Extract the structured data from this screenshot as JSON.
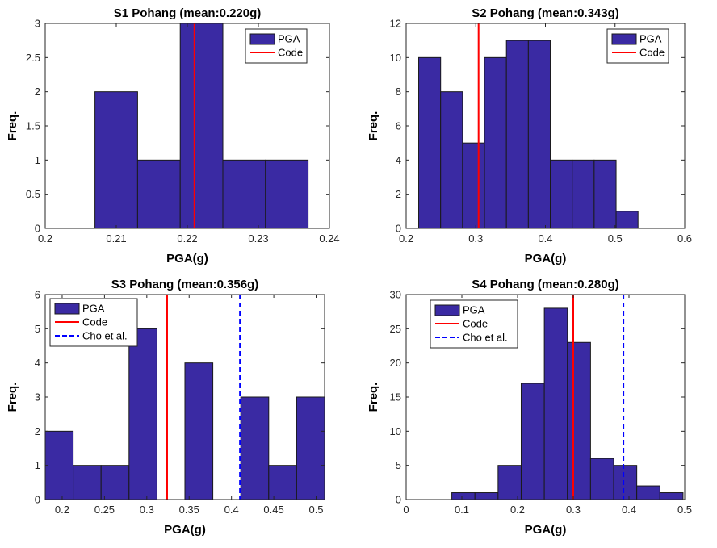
{
  "colors": {
    "bar": "#3a2aa3",
    "code": "#ff0000",
    "cho": "#0000ff"
  },
  "chart_data": [
    {
      "type": "bar",
      "title": "S1 Pohang (mean:0.220g)",
      "xlabel": "PGA(g)",
      "ylabel": "Freq.",
      "xlim": [
        0.2,
        0.24
      ],
      "ylim": [
        0,
        3
      ],
      "xticks": [
        0.2,
        0.21,
        0.22,
        0.23,
        0.24
      ],
      "xtick_labels": [
        "0.2",
        "0.21",
        "0.22",
        "0.23",
        "0.24"
      ],
      "yticks": [
        0,
        0.5,
        1,
        1.5,
        2,
        2.5,
        3
      ],
      "ytick_labels": [
        "0",
        "0.5",
        "1",
        "1.5",
        "2",
        "2.5",
        "3"
      ],
      "bin_edges": [
        0.207,
        0.213,
        0.219,
        0.225,
        0.231,
        0.237
      ],
      "values": [
        2,
        1,
        3,
        1,
        1
      ],
      "lines": [
        {
          "name": "Code",
          "x": 0.221,
          "style": "solid",
          "color": "#ff0000"
        }
      ],
      "legend": {
        "position": "top-right",
        "entries": [
          "PGA",
          "Code"
        ]
      }
    },
    {
      "type": "bar",
      "title": "S2 Pohang (mean:0.343g)",
      "xlabel": "PGA(g)",
      "ylabel": "Freq.",
      "xlim": [
        0.2,
        0.6
      ],
      "ylim": [
        0,
        12
      ],
      "xticks": [
        0.2,
        0.3,
        0.4,
        0.5,
        0.6
      ],
      "xtick_labels": [
        "0.2",
        "0.3",
        "0.4",
        "0.5",
        "0.6"
      ],
      "yticks": [
        0,
        2,
        4,
        6,
        8,
        10,
        12
      ],
      "ytick_labels": [
        "0",
        "2",
        "4",
        "6",
        "8",
        "10",
        "12"
      ],
      "bin_edges": [
        0.218,
        0.2495,
        0.281,
        0.3125,
        0.344,
        0.3755,
        0.407,
        0.4385,
        0.47,
        0.5015,
        0.533
      ],
      "values": [
        10,
        8,
        5,
        10,
        11,
        11,
        4,
        4,
        4,
        1
      ],
      "lines": [
        {
          "name": "Code",
          "x": 0.304,
          "style": "solid",
          "color": "#ff0000"
        }
      ],
      "legend": {
        "position": "top-right",
        "entries": [
          "PGA",
          "Code"
        ]
      }
    },
    {
      "type": "bar",
      "title": "S3 Pohang (mean:0.356g)",
      "xlabel": "PGA(g)",
      "ylabel": "Freq.",
      "xlim": [
        0.18,
        0.51
      ],
      "ylim": [
        0,
        6
      ],
      "xticks": [
        0.2,
        0.25,
        0.3,
        0.35,
        0.4,
        0.45,
        0.5
      ],
      "xtick_labels": [
        "0.2",
        "0.25",
        "0.3",
        "0.35",
        "0.4",
        "0.45",
        "0.5"
      ],
      "yticks": [
        0,
        1,
        2,
        3,
        4,
        5,
        6
      ],
      "ytick_labels": [
        "0",
        "1",
        "2",
        "3",
        "4",
        "5",
        "6"
      ],
      "bin_edges": [
        0.18,
        0.213,
        0.246,
        0.279,
        0.312,
        0.345,
        0.378,
        0.411,
        0.444,
        0.477,
        0.51
      ],
      "values": [
        2,
        1,
        1,
        5,
        0,
        4,
        0,
        3,
        1,
        3
      ],
      "lines": [
        {
          "name": "Code",
          "x": 0.324,
          "style": "solid",
          "color": "#ff0000"
        },
        {
          "name": "Cho et al.",
          "x": 0.41,
          "style": "dashed",
          "color": "#0000ff"
        }
      ],
      "legend": {
        "position": "top-left",
        "entries": [
          "PGA",
          "Code",
          "Cho et al."
        ]
      }
    },
    {
      "type": "bar",
      "title": "S4 Pohang (mean:0.280g)",
      "xlabel": "PGA(g)",
      "ylabel": "Freq.",
      "xlim": [
        0,
        0.5
      ],
      "ylim": [
        0,
        30
      ],
      "xticks": [
        0,
        0.1,
        0.2,
        0.3,
        0.4,
        0.5
      ],
      "xtick_labels": [
        "0",
        "0.1",
        "0.2",
        "0.3",
        "0.4",
        "0.5"
      ],
      "yticks": [
        0,
        5,
        10,
        15,
        20,
        25,
        30
      ],
      "ytick_labels": [
        "0",
        "5",
        "10",
        "15",
        "20",
        "25",
        "30"
      ],
      "bin_edges": [
        0.082,
        0.1235,
        0.165,
        0.2065,
        0.248,
        0.2895,
        0.331,
        0.3725,
        0.414,
        0.4555,
        0.497
      ],
      "values": [
        1,
        1,
        5,
        17,
        28,
        23,
        6,
        5,
        2,
        1
      ],
      "lines": [
        {
          "name": "Code",
          "x": 0.3,
          "style": "solid",
          "color": "#ff0000"
        },
        {
          "name": "Cho et al.",
          "x": 0.39,
          "style": "dashed",
          "color": "#0000ff"
        }
      ],
      "legend": {
        "position": "top-left",
        "entries": [
          "PGA",
          "Code",
          "Cho et al."
        ]
      }
    }
  ]
}
